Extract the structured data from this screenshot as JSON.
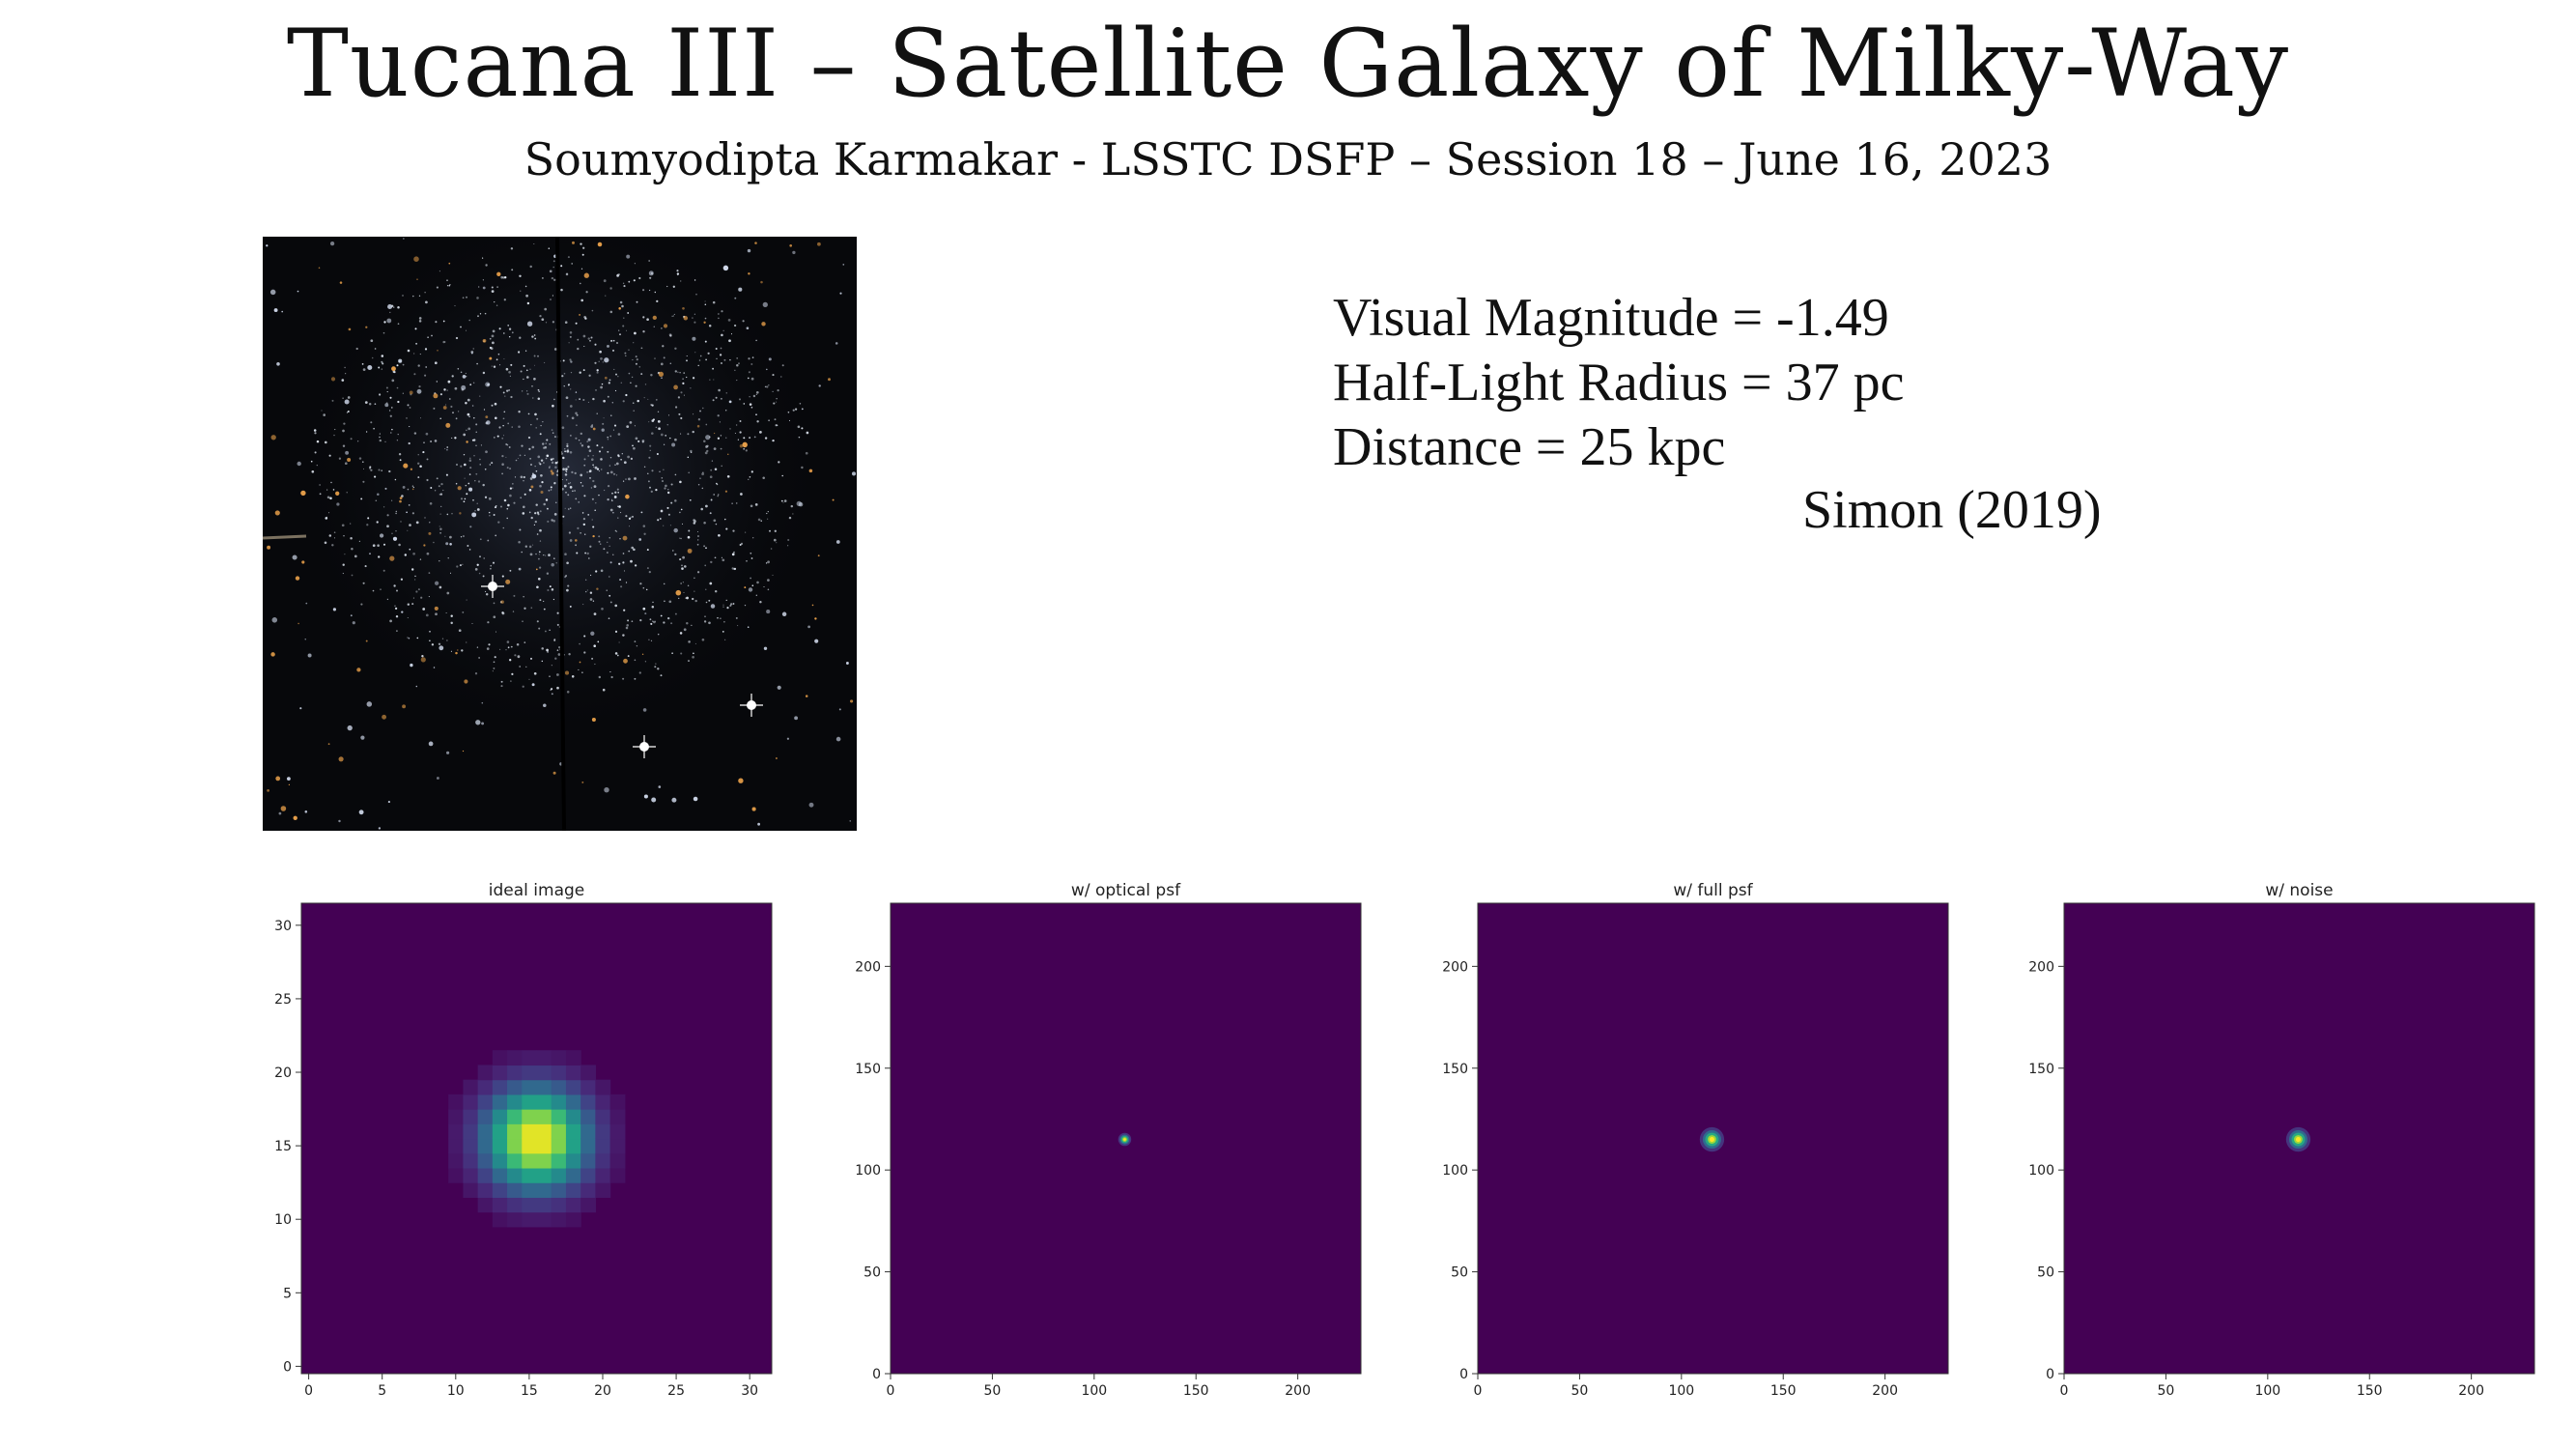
{
  "slide": {
    "title": "Tucana III – Satellite Galaxy of Milky-Way",
    "subtitle": "Soumyodipta Karmakar - LSSTC DSFP – Session 18 – June 16, 2023"
  },
  "properties": {
    "lines": [
      "Visual Magnitude = -1.49",
      "Half-Light Radius = 37 pc",
      "Distance = 25 kpc"
    ],
    "citation": "Simon (2019)"
  },
  "colors": {
    "background_panel": "#440154",
    "viridis_low": "#440154",
    "viridis_mid": "#21918c",
    "viridis_high": "#fde725"
  },
  "chart_data": [
    {
      "type": "heatmap",
      "title": "ideal image",
      "xlabel": "",
      "ylabel": "",
      "xlim": [
        -0.5,
        31.5
      ],
      "ylim": [
        -0.5,
        31.5
      ],
      "xticks": [
        0,
        5,
        10,
        15,
        20,
        25,
        30
      ],
      "yticks": [
        0,
        5,
        10,
        15,
        20,
        25,
        30
      ],
      "source": {
        "center": [
          15.5,
          15.5
        ],
        "sigma": 2.4,
        "peak": 1.0
      },
      "colormap": "viridis"
    },
    {
      "type": "heatmap",
      "title": "w/ optical psf",
      "xlabel": "",
      "ylabel": "",
      "xlim": [
        0,
        231
      ],
      "ylim": [
        0,
        231
      ],
      "xticks": [
        0,
        50,
        100,
        150,
        200
      ],
      "yticks": [
        0,
        50,
        100,
        150,
        200
      ],
      "source": {
        "center": [
          115,
          115
        ],
        "sigma": 1.6,
        "peak": 1.0
      },
      "colormap": "viridis"
    },
    {
      "type": "heatmap",
      "title": "w/ full psf",
      "xlabel": "",
      "ylabel": "",
      "xlim": [
        0,
        231
      ],
      "ylim": [
        0,
        231
      ],
      "xticks": [
        0,
        50,
        100,
        150,
        200
      ],
      "yticks": [
        0,
        50,
        100,
        150,
        200
      ],
      "source": {
        "center": [
          115,
          115
        ],
        "sigma": 3.0,
        "peak": 1.0
      },
      "colormap": "viridis"
    },
    {
      "type": "heatmap",
      "title": "w/ noise",
      "xlabel": "",
      "ylabel": "",
      "xlim": [
        0,
        231
      ],
      "ylim": [
        0,
        231
      ],
      "xticks": [
        0,
        50,
        100,
        150,
        200
      ],
      "yticks": [
        0,
        50,
        100,
        150,
        200
      ],
      "source": {
        "center": [
          115,
          115
        ],
        "sigma": 3.0,
        "peak": 1.0
      },
      "colormap": "viridis"
    }
  ]
}
